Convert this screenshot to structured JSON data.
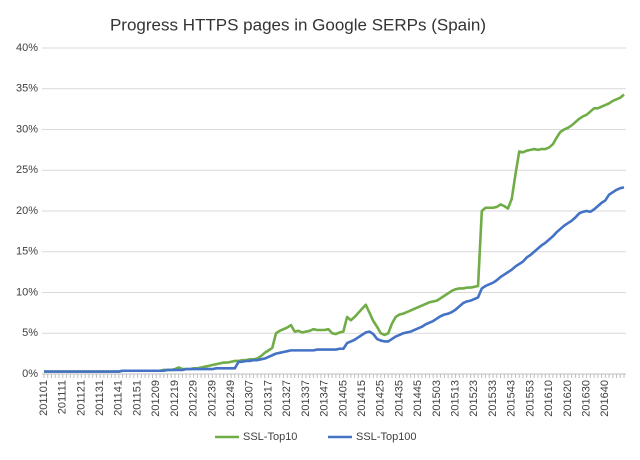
{
  "chart_data": {
    "type": "line",
    "title": "Progress HTTPS pages in Google SERPs (Spain)",
    "categories": [
      "201101",
      null,
      null,
      null,
      null,
      "201111",
      null,
      null,
      null,
      null,
      "201121",
      null,
      null,
      null,
      null,
      "201131",
      null,
      null,
      null,
      null,
      "201141",
      null,
      null,
      null,
      null,
      "201151",
      null,
      null,
      null,
      null,
      "201209",
      null,
      null,
      null,
      null,
      "201219",
      null,
      null,
      null,
      null,
      "201229",
      null,
      null,
      null,
      null,
      "201239",
      null,
      null,
      null,
      null,
      "201249",
      null,
      null,
      null,
      null,
      "201307",
      null,
      null,
      null,
      null,
      "201317",
      null,
      null,
      null,
      null,
      "201327",
      null,
      null,
      null,
      null,
      "201337",
      null,
      null,
      null,
      null,
      "201347",
      null,
      null,
      null,
      null,
      "201405",
      null,
      null,
      null,
      null,
      "201415",
      null,
      null,
      null,
      null,
      "201425",
      null,
      null,
      null,
      null,
      "201435",
      null,
      null,
      null,
      null,
      "201445",
      null,
      null,
      null,
      null,
      "201503",
      null,
      null,
      null,
      null,
      "201513",
      null,
      null,
      null,
      null,
      "201523",
      null,
      null,
      null,
      null,
      "201533",
      null,
      null,
      null,
      null,
      "201543",
      null,
      null,
      null,
      null,
      "201553",
      null,
      null,
      null,
      null,
      "201610",
      null,
      null,
      null,
      null,
      "201620",
      null,
      null,
      null,
      null,
      "201630",
      null,
      null,
      null,
      null,
      "201640",
      null,
      null,
      null,
      null,
      null
    ],
    "series": [
      {
        "name": "SSL-Top10",
        "color": "#70ad47",
        "values": [
          0.3,
          0.3,
          0.3,
          0.3,
          0.3,
          0.3,
          0.3,
          0.3,
          0.3,
          0.3,
          0.3,
          0.3,
          0.3,
          0.3,
          0.3,
          0.3,
          0.3,
          0.3,
          0.3,
          0.3,
          0.3,
          0.4,
          0.4,
          0.4,
          0.4,
          0.4,
          0.4,
          0.4,
          0.4,
          0.4,
          0.4,
          0.4,
          0.5,
          0.5,
          0.5,
          0.6,
          0.8,
          0.6,
          0.6,
          0.6,
          0.7,
          0.7,
          0.8,
          0.9,
          1.0,
          1.1,
          1.2,
          1.3,
          1.4,
          1.4,
          1.5,
          1.6,
          1.6,
          1.7,
          1.7,
          1.8,
          1.8,
          1.9,
          2.2,
          2.6,
          2.9,
          3.2,
          5.0,
          5.3,
          5.5,
          5.7,
          6.0,
          5.2,
          5.3,
          5.1,
          5.2,
          5.3,
          5.5,
          5.4,
          5.4,
          5.4,
          5.5,
          5.0,
          4.9,
          5.1,
          5.2,
          7.0,
          6.6,
          7.0,
          7.5,
          8.0,
          8.5,
          7.5,
          6.5,
          5.8,
          5.0,
          4.8,
          5.0,
          6.2,
          7.0,
          7.3,
          7.4,
          7.6,
          7.8,
          8.0,
          8.2,
          8.4,
          8.6,
          8.8,
          8.9,
          9.0,
          9.3,
          9.6,
          9.9,
          10.2,
          10.4,
          10.5,
          10.5,
          10.6,
          10.6,
          10.7,
          10.8,
          20.0,
          20.4,
          20.4,
          20.4,
          20.5,
          20.8,
          20.6,
          20.3,
          21.5,
          24.5,
          27.3,
          27.2,
          27.4,
          27.5,
          27.6,
          27.5,
          27.6,
          27.6,
          27.8,
          28.2,
          29.0,
          29.7,
          30.0,
          30.2,
          30.5,
          30.9,
          31.3,
          31.6,
          31.8,
          32.2,
          32.6,
          32.6,
          32.8,
          33.0,
          33.2,
          33.5,
          33.7,
          33.9,
          34.3
        ]
      },
      {
        "name": "SSL-Top100",
        "color": "#4472c4",
        "values": [
          0.3,
          0.3,
          0.3,
          0.3,
          0.3,
          0.3,
          0.3,
          0.3,
          0.3,
          0.3,
          0.3,
          0.3,
          0.3,
          0.3,
          0.3,
          0.3,
          0.3,
          0.3,
          0.3,
          0.3,
          0.3,
          0.4,
          0.4,
          0.4,
          0.4,
          0.4,
          0.4,
          0.4,
          0.4,
          0.4,
          0.4,
          0.4,
          0.4,
          0.5,
          0.5,
          0.5,
          0.5,
          0.5,
          0.6,
          0.6,
          0.6,
          0.6,
          0.6,
          0.6,
          0.6,
          0.6,
          0.7,
          0.7,
          0.7,
          0.7,
          0.7,
          0.7,
          1.5,
          1.5,
          1.6,
          1.6,
          1.7,
          1.7,
          1.8,
          1.9,
          2.1,
          2.3,
          2.5,
          2.6,
          2.7,
          2.8,
          2.9,
          2.9,
          2.9,
          2.9,
          2.9,
          2.9,
          2.9,
          3.0,
          3.0,
          3.0,
          3.0,
          3.0,
          3.0,
          3.1,
          3.1,
          3.8,
          4.0,
          4.2,
          4.5,
          4.8,
          5.1,
          5.2,
          4.9,
          4.3,
          4.1,
          4.0,
          4.0,
          4.3,
          4.6,
          4.8,
          5.0,
          5.1,
          5.2,
          5.4,
          5.6,
          5.8,
          6.1,
          6.3,
          6.5,
          6.8,
          7.1,
          7.3,
          7.4,
          7.6,
          7.9,
          8.3,
          8.7,
          8.9,
          9.0,
          9.2,
          9.4,
          10.5,
          10.8,
          11.0,
          11.2,
          11.5,
          11.9,
          12.2,
          12.5,
          12.8,
          13.2,
          13.5,
          13.8,
          14.3,
          14.6,
          15.0,
          15.4,
          15.8,
          16.1,
          16.5,
          16.9,
          17.4,
          17.8,
          18.2,
          18.5,
          18.8,
          19.2,
          19.7,
          19.9,
          20.0,
          19.9,
          20.2,
          20.6,
          21.0,
          21.3,
          22.0,
          22.3,
          22.6,
          22.8,
          22.9
        ]
      }
    ],
    "ylim": [
      0,
      40
    ],
    "yticks": [
      {
        "value": 0,
        "label": "0%"
      },
      {
        "value": 5,
        "label": "5%"
      },
      {
        "value": 10,
        "label": "10%"
      },
      {
        "value": 15,
        "label": "15%"
      },
      {
        "value": 20,
        "label": "20%"
      },
      {
        "value": 25,
        "label": "25%"
      },
      {
        "value": 30,
        "label": "30%"
      },
      {
        "value": 35,
        "label": "35%"
      },
      {
        "value": 40,
        "label": "40%"
      }
    ],
    "grid": true,
    "legend": "bottom"
  }
}
